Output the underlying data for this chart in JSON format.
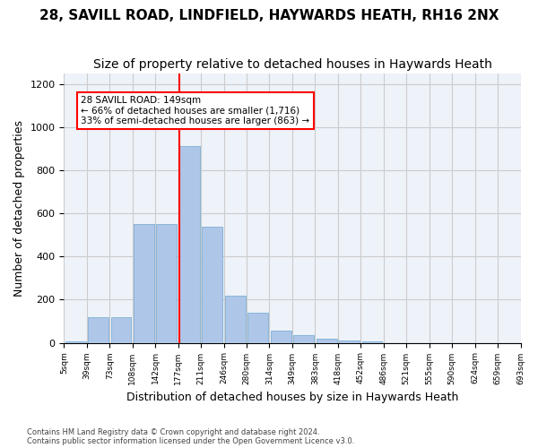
{
  "title1": "28, SAVILL ROAD, LINDFIELD, HAYWARDS HEATH, RH16 2NX",
  "title2": "Size of property relative to detached houses in Haywards Heath",
  "xlabel": "Distribution of detached houses by size in Haywards Heath",
  "ylabel": "Number of detached properties",
  "footnote1": "Contains HM Land Registry data © Crown copyright and database right 2024.",
  "footnote2": "Contains public sector information licensed under the Open Government Licence v3.0.",
  "annotation_line1": "28 SAVILL ROAD: 149sqm",
  "annotation_line2": "← 66% of detached houses are smaller (1,716)",
  "annotation_line3": "33% of semi-detached houses are larger (863) →",
  "bar_color": "#aec6e8",
  "bar_edge_color": "#6ea8d0",
  "bar_heights": [
    5,
    120,
    120,
    550,
    550,
    910,
    540,
    220,
    140,
    55,
    35,
    20,
    10,
    5,
    0,
    0,
    0,
    0,
    0,
    0
  ],
  "tick_labels": [
    "5sqm",
    "39sqm",
    "73sqm",
    "108sqm",
    "142sqm",
    "177sqm",
    "211sqm",
    "246sqm",
    "280sqm",
    "314sqm",
    "349sqm",
    "383sqm",
    "418sqm",
    "452sqm",
    "486sqm",
    "521sqm",
    "555sqm",
    "590sqm",
    "624sqm",
    "659sqm",
    "693sqm"
  ],
  "ylim": [
    0,
    1250
  ],
  "yticks": [
    0,
    200,
    400,
    600,
    800,
    1000,
    1200
  ],
  "redline_x": 4.55,
  "grid_color": "#cccccc",
  "bg_color": "#eef2f9",
  "title1_fontsize": 11,
  "title2_fontsize": 10,
  "xlabel_fontsize": 9,
  "ylabel_fontsize": 9
}
